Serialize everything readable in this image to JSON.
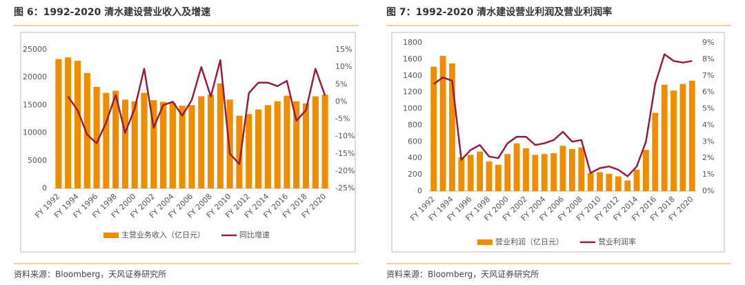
{
  "chart_data": [
    {
      "type": "bar",
      "title": "图 6：1992-2020 清水建设营业收入及增速",
      "source": "资料来源：Bloomberg，天风证券研究所",
      "categories": [
        "FY 1992",
        null,
        "FY 1994",
        null,
        "FY 1996",
        null,
        "FY 1998",
        null,
        "FY 2000",
        null,
        "FY 2002",
        null,
        "FY 2004",
        null,
        "FY 2006",
        null,
        "FY 2008",
        null,
        "FY 2010",
        null,
        "FY 2012",
        null,
        "FY 2014",
        null,
        "FY 2016",
        null,
        "FY 2018",
        null,
        "FY 2020"
      ],
      "series": [
        {
          "name": "主营业务收入（亿日元）",
          "type": "bar",
          "color": "#f08c00",
          "values": [
            23300,
            23600,
            23000,
            20800,
            18300,
            17200,
            17600,
            16000,
            15700,
            17200,
            15900,
            15600,
            15400,
            14900,
            15000,
            16600,
            16900,
            18900,
            16000,
            13100,
            13400,
            14200,
            15000,
            15700,
            16700,
            15700,
            15300,
            16600,
            16900
          ]
        },
        {
          "name": "同比增速",
          "type": "line",
          "axis": "y2",
          "color": "#9b1b3a",
          "values": [
            null,
            1.5,
            -2.5,
            -9.5,
            -12,
            -6,
            2,
            -9,
            -2,
            9.5,
            -7.5,
            -1,
            0,
            -4,
            0.5,
            10,
            1.5,
            12,
            -15,
            -18,
            2.5,
            5.5,
            5.5,
            4.5,
            6,
            -5.5,
            -2.5,
            9.5,
            1.8
          ]
        }
      ],
      "ylim": [
        0,
        25000
      ],
      "yticks": [
        0,
        5000,
        10000,
        15000,
        20000,
        25000
      ],
      "y2lim": [
        -25,
        15
      ],
      "y2ticks": [
        {
          "value": -25,
          "label": "-25%"
        },
        {
          "value": -20,
          "label": "-20%"
        },
        {
          "value": -15,
          "label": "-15%"
        },
        {
          "value": -10,
          "label": "-10%"
        },
        {
          "value": -5,
          "label": "-5%"
        },
        {
          "value": 0,
          "label": "0%"
        },
        {
          "value": 5,
          "label": "5%"
        },
        {
          "value": 10,
          "label": "10%"
        },
        {
          "value": 15,
          "label": "15%"
        }
      ]
    },
    {
      "type": "bar",
      "title": "图 7：1992-2020 清水建设营业利润及营业利润率",
      "source": "资料来源：Bloomberg，天风证券研究所",
      "categories": [
        "FY 1992",
        null,
        "FY 1994",
        null,
        "FY 1996",
        null,
        "FY 1998",
        null,
        "FY 2000",
        null,
        "FY 2002",
        null,
        "FY 2004",
        null,
        "FY 2006",
        null,
        "FY 2008",
        null,
        "FY 2010",
        null,
        "FY 2012",
        null,
        "FY 2014",
        null,
        "FY 2016",
        null,
        "FY 2018",
        null,
        "FY 2020"
      ],
      "series": [
        {
          "name": "营业利润（亿日元）",
          "type": "bar",
          "color": "#f08c00",
          "values": [
            1510,
            1640,
            1550,
            410,
            440,
            480,
            360,
            320,
            450,
            580,
            520,
            440,
            450,
            460,
            550,
            510,
            530,
            220,
            230,
            210,
            180,
            130,
            260,
            500,
            950,
            1290,
            1220,
            1300,
            1340
          ]
        },
        {
          "name": "营业利润率",
          "type": "line",
          "axis": "y2",
          "color": "#9b1b3a",
          "values": [
            6.5,
            6.9,
            6.7,
            1.9,
            2.5,
            2.8,
            2.1,
            2.0,
            2.9,
            3.3,
            3.3,
            2.8,
            2.9,
            3.1,
            3.6,
            3.0,
            3.1,
            1.1,
            1.4,
            1.5,
            1.3,
            0.9,
            1.5,
            3.0,
            6.5,
            8.3,
            7.9,
            7.8,
            7.9
          ]
        }
      ],
      "ylim": [
        0,
        1800
      ],
      "yticks": [
        0,
        200,
        400,
        600,
        800,
        1000,
        1200,
        1400,
        1600,
        1800
      ],
      "y2lim": [
        0,
        9
      ],
      "y2ticks": [
        {
          "value": 0,
          "label": "0%"
        },
        {
          "value": 1,
          "label": "1%"
        },
        {
          "value": 2,
          "label": "2%"
        },
        {
          "value": 3,
          "label": "3%"
        },
        {
          "value": 4,
          "label": "4%"
        },
        {
          "value": 5,
          "label": "5%"
        },
        {
          "value": 6,
          "label": "6%"
        },
        {
          "value": 7,
          "label": "7%"
        },
        {
          "value": 8,
          "label": "8%"
        },
        {
          "value": 9,
          "label": "9%"
        }
      ]
    }
  ]
}
